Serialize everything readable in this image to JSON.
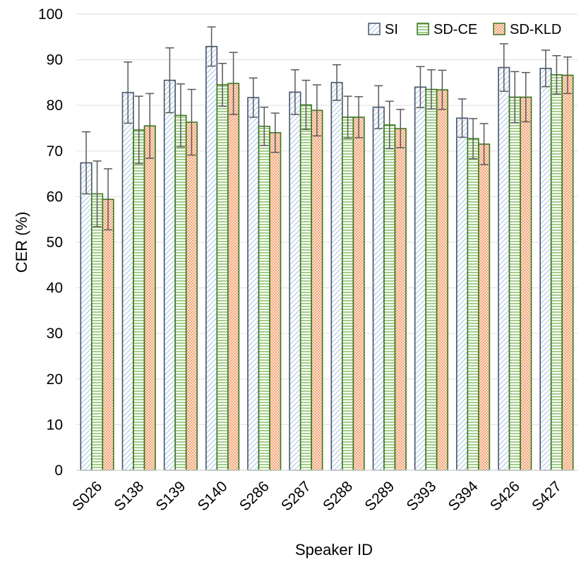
{
  "chart_data": {
    "type": "bar",
    "title": "",
    "xlabel": "Speaker ID",
    "ylabel": "CER (%)",
    "ylim": [
      0,
      100
    ],
    "yticks": [
      0,
      10,
      20,
      30,
      40,
      50,
      60,
      70,
      80,
      90,
      100
    ],
    "ytick_labels": [
      "0",
      "10",
      "20",
      "30",
      "40",
      "50",
      "60",
      "70",
      "80",
      "90",
      "100"
    ],
    "grid": true,
    "legend_position": "top-right",
    "categories": [
      "S026",
      "S138",
      "S139",
      "S140",
      "S286",
      "S287",
      "S288",
      "S289",
      "S393",
      "S394",
      "S426",
      "S427"
    ],
    "series": [
      {
        "name": "SI",
        "values": [
          67.4,
          82.8,
          85.5,
          92.9,
          81.7,
          82.9,
          85.0,
          79.6,
          84.0,
          77.2,
          88.3,
          88.1
        ],
        "errors": [
          6.8,
          6.7,
          7.1,
          4.3,
          4.3,
          4.9,
          3.9,
          4.7,
          4.5,
          4.2,
          5.2,
          4.0
        ],
        "color": "#dce6f2",
        "edge": "#44546a"
      },
      {
        "name": "SD-CE",
        "values": [
          60.6,
          74.6,
          77.8,
          84.5,
          75.4,
          80.1,
          77.4,
          75.7,
          83.5,
          72.7,
          81.8,
          86.7
        ],
        "errors": [
          7.2,
          7.4,
          6.9,
          4.7,
          4.2,
          5.4,
          4.6,
          5.2,
          4.3,
          4.4,
          5.6,
          4.2
        ],
        "color": "#e2efd9",
        "edge": "#38761d"
      },
      {
        "name": "SD-KLD",
        "values": [
          59.4,
          75.5,
          76.3,
          84.8,
          74.0,
          78.9,
          77.4,
          74.9,
          83.4,
          71.5,
          81.8,
          86.6
        ],
        "errors": [
          6.7,
          7.1,
          7.2,
          6.8,
          4.3,
          5.6,
          4.5,
          4.2,
          4.3,
          4.5,
          5.4,
          4.0
        ],
        "color": "#fbe4d5",
        "edge": "#38761d"
      }
    ]
  }
}
